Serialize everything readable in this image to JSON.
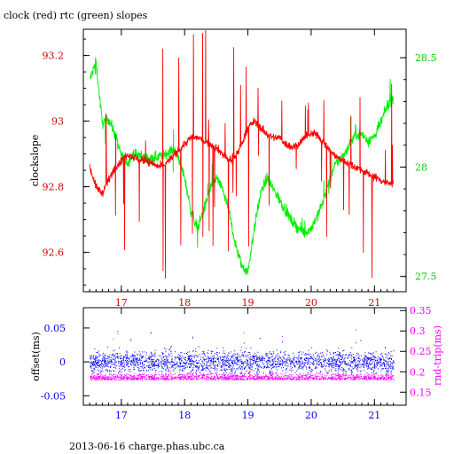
{
  "title": "clock (red) rtc (green) slopes",
  "footer": "2013-06-16 charge.phas.ubc.ca",
  "colors": {
    "red": "#ff0000",
    "green": "#00ee00",
    "blue": "#0000ff",
    "magenta": "#ff00ff",
    "axis": "#000000"
  },
  "chart_data": [
    {
      "type": "line",
      "title": "clock (red) rtc (green) slopes",
      "xlabel": "",
      "ylabel": "clockslope",
      "xlim": [
        16.4,
        21.5
      ],
      "ylim": [
        92.48,
        93.28
      ],
      "y2lim": [
        27.43,
        28.63
      ],
      "x_ticks": [
        "17",
        "18",
        "19",
        "20",
        "21"
      ],
      "y_ticks": [
        "92.6",
        "92.8",
        "93",
        "93.2"
      ],
      "y2_ticks": [
        "27.5",
        "28",
        "28.5"
      ],
      "series": [
        {
          "name": "clock",
          "axis": "left",
          "color": "#ff0000",
          "x": [
            16.5,
            16.6,
            16.7,
            16.8,
            16.9,
            17.0,
            17.1,
            17.2,
            17.3,
            17.4,
            17.5,
            17.6,
            17.7,
            17.8,
            17.9,
            18.0,
            18.1,
            18.2,
            18.3,
            18.4,
            18.5,
            18.6,
            18.7,
            18.8,
            18.9,
            19.0,
            19.1,
            19.2,
            19.3,
            19.4,
            19.5,
            19.6,
            19.7,
            19.8,
            19.9,
            20.0,
            20.1,
            20.2,
            20.3,
            20.4,
            20.5,
            20.6,
            20.7,
            20.8,
            20.9,
            21.0,
            21.1,
            21.2,
            21.3
          ],
          "y": [
            92.86,
            92.8,
            92.78,
            92.82,
            92.86,
            92.88,
            92.9,
            92.89,
            92.88,
            92.88,
            92.87,
            92.86,
            92.87,
            92.89,
            92.91,
            92.93,
            92.95,
            92.95,
            92.94,
            92.93,
            92.92,
            92.9,
            92.88,
            92.89,
            92.93,
            92.98,
            93.0,
            92.98,
            92.96,
            92.95,
            92.95,
            92.93,
            92.92,
            92.93,
            92.95,
            92.96,
            92.96,
            92.93,
            92.91,
            92.89,
            92.88,
            92.87,
            92.86,
            92.85,
            92.84,
            92.83,
            92.82,
            92.81,
            92.81
          ]
        },
        {
          "name": "rtc",
          "axis": "right",
          "color": "#00ee00",
          "x": [
            16.5,
            16.6,
            16.7,
            16.8,
            16.9,
            17.0,
            17.1,
            17.2,
            17.3,
            17.4,
            17.5,
            17.6,
            17.7,
            17.8,
            17.9,
            18.0,
            18.1,
            18.2,
            18.3,
            18.4,
            18.5,
            18.6,
            18.7,
            18.8,
            18.9,
            19.0,
            19.1,
            19.2,
            19.3,
            19.4,
            19.5,
            19.6,
            19.7,
            19.8,
            19.9,
            20.0,
            20.1,
            20.2,
            20.3,
            20.4,
            20.5,
            20.6,
            20.7,
            20.8,
            20.9,
            21.0,
            21.1,
            21.2,
            21.3
          ],
          "y": [
            28.4,
            28.48,
            28.2,
            28.22,
            28.15,
            28.05,
            28.02,
            28.06,
            28.05,
            28.04,
            28.04,
            28.05,
            28.06,
            28.08,
            28.05,
            27.95,
            27.8,
            27.72,
            27.8,
            27.9,
            27.95,
            27.9,
            27.8,
            27.65,
            27.55,
            27.52,
            27.72,
            27.88,
            27.95,
            27.9,
            27.85,
            27.8,
            27.75,
            27.72,
            27.7,
            27.72,
            27.78,
            27.85,
            27.95,
            28.02,
            28.05,
            28.1,
            28.15,
            28.15,
            28.12,
            28.14,
            28.2,
            28.28,
            28.32
          ]
        }
      ]
    },
    {
      "type": "scatter",
      "xlabel": "",
      "ylabel": "offset(ms)",
      "y2label": "rnd-trip(ms)",
      "xlim": [
        16.4,
        21.5
      ],
      "ylim": [
        -0.064,
        0.08
      ],
      "y2lim": [
        0.118,
        0.357
      ],
      "x_ticks": [
        "17",
        "18",
        "19",
        "20",
        "21"
      ],
      "y_ticks": [
        "-0.05",
        "0",
        "0.05"
      ],
      "y2_ticks": [
        "0.15",
        "0.2",
        "0.25",
        "0.3",
        "0.35"
      ],
      "series": [
        {
          "name": "offset",
          "axis": "left",
          "color": "#0000ff",
          "x_range": [
            16.5,
            21.3
          ],
          "y_center": 0.0,
          "y_spread": 0.02
        },
        {
          "name": "rnd-trip",
          "axis": "right",
          "color": "#ff00ff",
          "x_range": [
            16.5,
            21.3
          ],
          "y_center": 0.19,
          "y_spread": 0.03
        }
      ]
    }
  ]
}
